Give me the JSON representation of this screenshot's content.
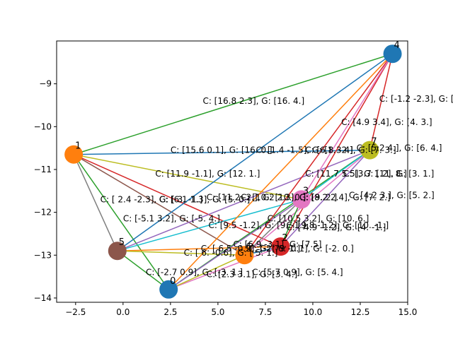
{
  "chart_data": {
    "type": "scatter",
    "xlim": [
      -3.5,
      15.0
    ],
    "ylim": [
      -14.1,
      -8.0
    ],
    "x_ticks": [
      -2.5,
      0.0,
      2.5,
      5.0,
      7.5,
      10.0,
      12.5,
      15.0
    ],
    "y_ticks": [
      -14,
      -13,
      -12,
      -11,
      -10,
      -9
    ],
    "x_tick_labels": [
      "−2.5",
      "0.0",
      "2.5",
      "5.0",
      "7.5",
      "10.0",
      "12.5",
      "15.0"
    ],
    "y_tick_labels": [
      "−14",
      "−13",
      "−12",
      "−11",
      "−10",
      "−9"
    ],
    "grid": false,
    "nodes": [
      {
        "id": "0",
        "x": 2.4,
        "y": -13.8,
        "color": "#1f77b4"
      },
      {
        "id": "1",
        "x": -2.6,
        "y": -10.65,
        "color": "#ff7f0e"
      },
      {
        "id": "2",
        "x": 8.3,
        "y": -12.8,
        "color": "#d62728"
      },
      {
        "id": "3",
        "x": 9.4,
        "y": -11.7,
        "color": "#e377c2"
      },
      {
        "id": "4",
        "x": 14.2,
        "y": -8.3,
        "color": "#1f77b4"
      },
      {
        "id": "5",
        "x": -0.3,
        "y": -12.9,
        "color": "#8c564b"
      },
      {
        "id": "6",
        "x": 6.4,
        "y": -13.0,
        "color": "#ff7f0e"
      },
      {
        "id": "7",
        "x": 13.0,
        "y": -10.55,
        "color": "#bcbd22"
      }
    ],
    "edges": [
      {
        "from": "1",
        "to": "4",
        "color": "#2ca02c"
      },
      {
        "from": "1",
        "to": "7",
        "color": "#1f77b4"
      },
      {
        "from": "1",
        "to": "3",
        "color": "#bcbd22"
      },
      {
        "from": "1",
        "to": "2",
        "color": "#d62728"
      },
      {
        "from": "1",
        "to": "6",
        "color": "#8c564b"
      },
      {
        "from": "1",
        "to": "5",
        "color": "#7f7f7f"
      },
      {
        "from": "1",
        "to": "0",
        "color": "#2ca02c"
      },
      {
        "from": "5",
        "to": "4",
        "color": "#1f77b4"
      },
      {
        "from": "5",
        "to": "7",
        "color": "#9467bd"
      },
      {
        "from": "5",
        "to": "3",
        "color": "#17becf"
      },
      {
        "from": "5",
        "to": "2",
        "color": "#ff7f0e"
      },
      {
        "from": "5",
        "to": "6",
        "color": "#bcbd22"
      },
      {
        "from": "5",
        "to": "0",
        "color": "#2ca02c"
      },
      {
        "from": "0",
        "to": "4",
        "color": "#ff7f0e"
      },
      {
        "from": "0",
        "to": "7",
        "color": "#2ca02c"
      },
      {
        "from": "0",
        "to": "3",
        "color": "#9467bd"
      },
      {
        "from": "0",
        "to": "2",
        "color": "#e377c2"
      },
      {
        "from": "0",
        "to": "6",
        "color": "#bcbd22"
      },
      {
        "from": "6",
        "to": "4",
        "color": "#d62728"
      },
      {
        "from": "6",
        "to": "7",
        "color": "#e377c2"
      },
      {
        "from": "6",
        "to": "3",
        "color": "#7f7f7f"
      },
      {
        "from": "6",
        "to": "2",
        "color": "#1f77b4"
      },
      {
        "from": "2",
        "to": "4",
        "color": "#d62728"
      },
      {
        "from": "2",
        "to": "7",
        "color": "#9467bd"
      },
      {
        "from": "2",
        "to": "3",
        "color": "#2ca02c"
      },
      {
        "from": "3",
        "to": "4",
        "color": "#e377c2"
      },
      {
        "from": "3",
        "to": "7",
        "color": "#17becf"
      },
      {
        "from": "7",
        "to": "4",
        "color": "#d62728"
      }
    ],
    "annotations": [
      {
        "text": "C: [16.8  2.3], G: [16.  4.]",
        "x": 4.2,
        "y": -9.4
      },
      {
        "text": "C: [-1.2 -2.3], G: [",
        "x": 13.5,
        "y": -9.35
      },
      {
        "text": "C: [4.9 3.4], G: [4. 3.]",
        "x": 11.5,
        "y": -9.9
      },
      {
        "text": "C: [15.6  0.1], G: [16.  0.]",
        "x": 2.5,
        "y": -10.55
      },
      {
        "text": "C: [1.4 -1.5], G: [1. -2.]",
        "x": 7.0,
        "y": -10.55
      },
      {
        "text": "C: [6.8  3.4], G: [7. 3.]",
        "x": 9.6,
        "y": -10.55
      },
      {
        "text": "C: [5.2 4.], G: [6. 4.]",
        "x": 12.3,
        "y": -10.5
      },
      {
        "text": "C: [11.7  5.5], G: [11.  8.]",
        "x": 9.6,
        "y": -11.1
      },
      {
        "text": "C: [11.9 -1.1], G: [12.  1.]",
        "x": 1.7,
        "y": -11.1
      },
      {
        "text": "C: [3.7 1.2], G: [3. 1.]",
        "x": 11.6,
        "y": -11.1
      },
      {
        "text": "C: [11.2 -2.], G: [10.  0.]",
        "x": 4.4,
        "y": -11.65
      },
      {
        "text": "C: [10.2  2.3], G: [9. 2.]",
        "x": 6.2,
        "y": -11.65
      },
      {
        "text": "C: [8.2 2.4], G: [7. 2.]",
        "x": 9.3,
        "y": -11.65
      },
      {
        "text": "C: [4.2 3.], G: [5. 2.]",
        "x": 11.9,
        "y": -11.6
      },
      {
        "text": "C: [ 2.4 -2.3], G: [ 3. -1.]",
        "x": -1.2,
        "y": -11.7
      },
      {
        "text": "C: [6.1  1.3], G: [5. 0.]",
        "x": 1.9,
        "y": -11.7
      },
      {
        "text": "C: [-5.1  3.2], G: [-5.  4.]",
        "x": 0.0,
        "y": -12.15
      },
      {
        "text": "C: [10.5  3.2], G: [10.  6.]",
        "x": 7.6,
        "y": -12.15
      },
      {
        "text": "C: [9.5 -1.2], G: [9. -1.]",
        "x": 4.5,
        "y": -12.3
      },
      {
        "text": "C: [9.8 -1.2], G: [10. -1.]",
        "x": 8.6,
        "y": -12.3
      },
      {
        "text": "C: [ 4.9 -1.2], G: [4. -1.]",
        "x": 8.6,
        "y": -12.35
      },
      {
        "text": "C: [6.9 -3.1], G: [7.5]",
        "x": 5.8,
        "y": -12.75
      },
      {
        "text": "C: [ 6.5 -0.2], G: [ 6.  1.]",
        "x": 4.1,
        "y": -12.85
      },
      {
        "text": "C: [-2.79 -0.1], G: [-2.  0.]",
        "x": 6.6,
        "y": -12.85
      },
      {
        "text": "C: [ 6. -0.6], G: [ 5. 1.]",
        "x": 3.2,
        "y": -12.95
      },
      {
        "text": "C: [-2.7  0.9], G: [-3.  1.]",
        "x": 1.2,
        "y": -13.4
      },
      {
        "text": "C: [5.7 0.9], G: [5. 4.]",
        "x": 6.8,
        "y": -13.4
      },
      {
        "text": "C: [2.3 3.1], G: [3. 4.]",
        "x": 4.4,
        "y": -13.45
      }
    ]
  }
}
